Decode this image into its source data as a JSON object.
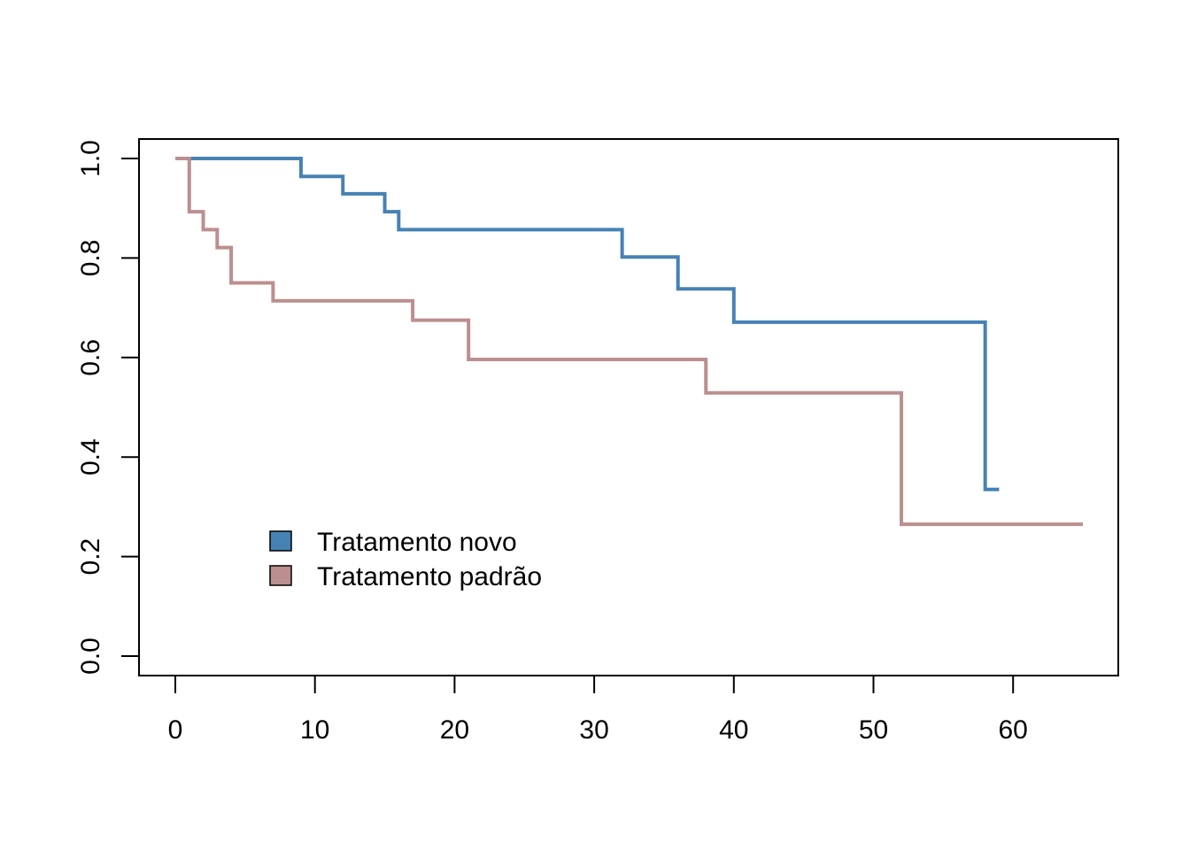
{
  "chart_data": {
    "type": "line",
    "subtype": "step (Kaplan-Meier survival curves)",
    "title": "",
    "xlabel": "",
    "ylabel": "",
    "xlim": [
      0,
      65
    ],
    "ylim": [
      0,
      1
    ],
    "x_ticks": [
      0,
      10,
      20,
      30,
      40,
      50,
      60
    ],
    "y_ticks": [
      0.0,
      0.2,
      0.4,
      0.6,
      0.8,
      1.0
    ],
    "x_tick_labels": [
      "0",
      "10",
      "20",
      "30",
      "40",
      "50",
      "60"
    ],
    "y_tick_labels": [
      "0.0",
      "0.2",
      "0.4",
      "0.6",
      "0.8",
      "1.0"
    ],
    "grid": false,
    "legend_position": "bottom-left",
    "series": [
      {
        "name": "Tratamento novo",
        "color": "#4682B4",
        "steps": [
          [
            0,
            1.0
          ],
          [
            9,
            0.964
          ],
          [
            12,
            0.929
          ],
          [
            15,
            0.893
          ],
          [
            16,
            0.857
          ],
          [
            32,
            0.802
          ],
          [
            36,
            0.738
          ],
          [
            40,
            0.671
          ],
          [
            58,
            0.335
          ],
          [
            59,
            0.335
          ]
        ]
      },
      {
        "name": "Tratamento padrão",
        "color": "#BC8F8F",
        "steps": [
          [
            0,
            1.0
          ],
          [
            1,
            0.893
          ],
          [
            2,
            0.857
          ],
          [
            3,
            0.821
          ],
          [
            4,
            0.75
          ],
          [
            7,
            0.714
          ],
          [
            17,
            0.675
          ],
          [
            21,
            0.596
          ],
          [
            38,
            0.529
          ],
          [
            52,
            0.265
          ],
          [
            65,
            0.265
          ]
        ]
      }
    ]
  }
}
